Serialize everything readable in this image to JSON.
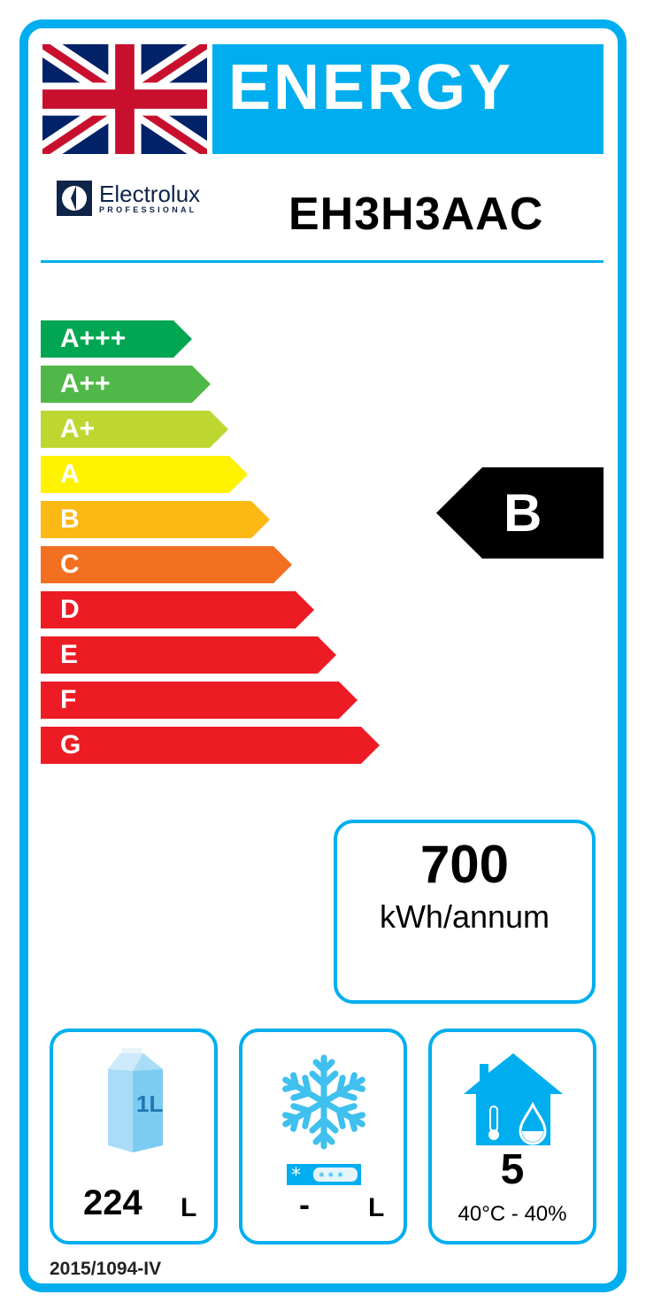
{
  "header": {
    "title": "ENERGY",
    "flag_icon": "union-jack-flag"
  },
  "brand": {
    "name": "Electrolux",
    "subtitle": "PROFESSIONAL"
  },
  "model": "EH3H3AAC",
  "scale": [
    {
      "label": "A+++",
      "color": "#00a651"
    },
    {
      "label": "A++",
      "color": "#50b848"
    },
    {
      "label": "A+",
      "color": "#bed630"
    },
    {
      "label": "A",
      "color": "#fff200"
    },
    {
      "label": "B",
      "color": "#fdb913"
    },
    {
      "label": "C",
      "color": "#f37021"
    },
    {
      "label": "D",
      "color": "#ed1c24"
    },
    {
      "label": "E",
      "color": "#ed1c24"
    },
    {
      "label": "F",
      "color": "#ed1c24"
    },
    {
      "label": "G",
      "color": "#ed1c24"
    }
  ],
  "rating": "B",
  "consumption": {
    "value": "700",
    "unit": "kWh/annum"
  },
  "fresh_volume": {
    "value": "224",
    "unit": "L",
    "icon": "milk-carton-icon",
    "icon_text": "1L"
  },
  "frozen_volume": {
    "value": "-",
    "unit": "L",
    "icon": "snowflake-icon"
  },
  "climate": {
    "class": "5",
    "conditions": "40°C - 40%",
    "icon": "house-thermometer-drop-icon"
  },
  "regulation": "2015/1094-IV",
  "accent_color": "#00aeef"
}
